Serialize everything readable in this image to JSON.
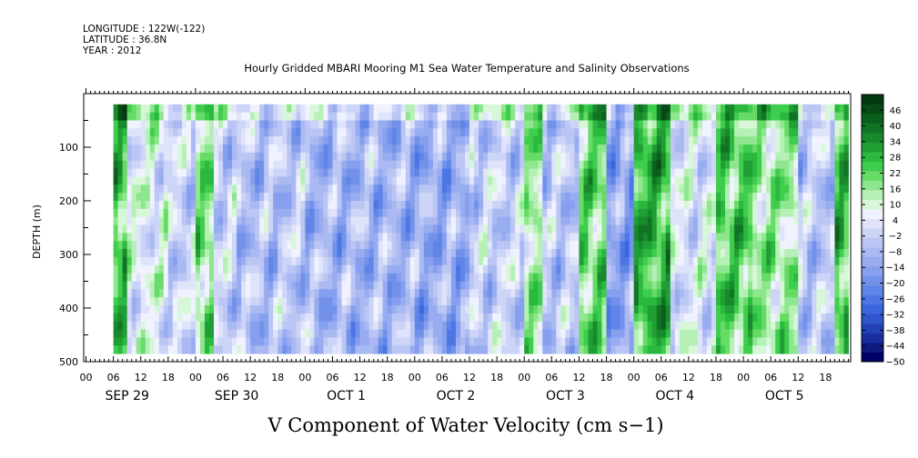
{
  "header": {
    "longitude": "LONGITUDE : 122W(-122)",
    "latitude": "LATITUDE : 36.8N",
    "year": "YEAR : 2012"
  },
  "chart_data": {
    "type": "heatmap",
    "title": "Hourly Gridded MBARI Mooring M1 Sea Water Temperature and Salinity Observations",
    "xlabel": "V Component of Water Velocity (cm s−1)",
    "ylabel": "DEPTH (m)",
    "ylim": [
      500,
      0
    ],
    "y_ticks": [
      100,
      200,
      300,
      400,
      500
    ],
    "x_hour_ticks": [
      "00",
      "06",
      "12",
      "18",
      "00",
      "06",
      "12",
      "18",
      "00",
      "06",
      "12",
      "18",
      "00",
      "06",
      "12",
      "18",
      "00",
      "06",
      "12",
      "18",
      "00",
      "06",
      "12",
      "18",
      "00",
      "06",
      "12",
      "18"
    ],
    "x_day_labels": [
      "SEP 29",
      "SEP 30",
      "OCT  1",
      "OCT  2",
      "OCT  3",
      "OCT  4",
      "OCT  5"
    ],
    "colorbar": {
      "labels": [
        46,
        40,
        34,
        28,
        22,
        16,
        10,
        4,
        -2,
        -8,
        -14,
        -20,
        -26,
        -32,
        -38,
        -44,
        -50
      ],
      "range": [
        -50,
        52
      ],
      "step": 3
    },
    "data_start_hour": 6,
    "data_end_hour": 167,
    "data_top_depth": 20,
    "data_bottom_depth": 485,
    "bands": [
      {
        "hour_start": 6,
        "hour_end": 9,
        "value": 12
      },
      {
        "hour_start": 9,
        "hour_end": 18,
        "value": -4
      },
      {
        "hour_start": 18,
        "hour_end": 24,
        "value": -9
      },
      {
        "hour_start": 24,
        "hour_end": 28,
        "value": 6
      },
      {
        "hour_start": 28,
        "hour_end": 33,
        "value": -10
      },
      {
        "hour_start": 33,
        "hour_end": 42,
        "value": -14
      },
      {
        "hour_start": 42,
        "hour_end": 48,
        "value": -12
      },
      {
        "hour_start": 48,
        "hour_end": 72,
        "value": -16
      },
      {
        "hour_start": 72,
        "hour_end": 84,
        "value": -18
      },
      {
        "hour_start": 84,
        "hour_end": 96,
        "value": -10
      },
      {
        "hour_start": 96,
        "hour_end": 100,
        "value": 4
      },
      {
        "hour_start": 100,
        "hour_end": 108,
        "value": -12
      },
      {
        "hour_start": 108,
        "hour_end": 114,
        "value": 8
      },
      {
        "hour_start": 114,
        "hour_end": 120,
        "value": -20
      },
      {
        "hour_start": 120,
        "hour_end": 128,
        "value": 14
      },
      {
        "hour_start": 128,
        "hour_end": 138,
        "value": -6
      },
      {
        "hour_start": 138,
        "hour_end": 146,
        "value": 10
      },
      {
        "hour_start": 146,
        "hour_end": 156,
        "value": 4
      },
      {
        "hour_start": 156,
        "hour_end": 164,
        "value": -12
      },
      {
        "hour_start": 164,
        "hour_end": 167,
        "value": 12
      }
    ]
  },
  "colors": {
    "palette": [
      "#000066",
      "#0f1a80",
      "#1a2e9e",
      "#2342b8",
      "#2e55cc",
      "#3a66dd",
      "#4b76e4",
      "#5f85e8",
      "#7292ea",
      "#869fee",
      "#98acf0",
      "#aab9f2",
      "#bcc6f4",
      "#ccd4f7",
      "#dfe4fb",
      "#f0f3ff",
      "#d8f7d8",
      "#b6f0b6",
      "#8ee68e",
      "#66db66",
      "#3fcd4e",
      "#2bb83e",
      "#1f9e34",
      "#188a2c",
      "#117424",
      "#0c5f1d",
      "#074a16",
      "#053a10"
    ]
  }
}
